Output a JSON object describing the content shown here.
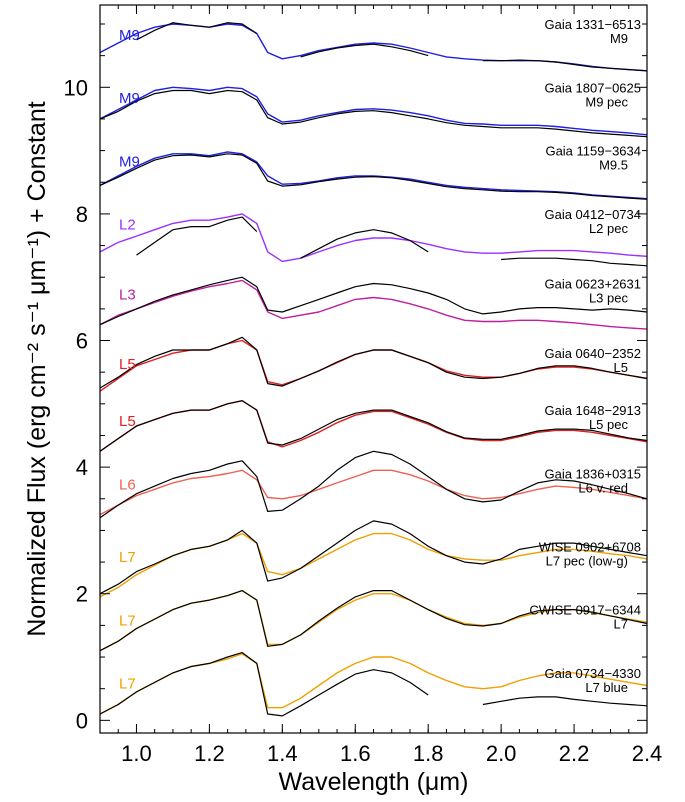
{
  "chart_data": {
    "type": "line",
    "xlabel": "Wavelength (μm)",
    "ylabel": "Normalized Flux (erg cm⁻² s⁻¹ μm⁻¹) + Constant",
    "xlim": [
      0.9,
      2.4
    ],
    "ylim": [
      -0.2,
      11.3
    ],
    "xticks": [
      1.0,
      1.2,
      1.4,
      1.6,
      1.8,
      2.0,
      2.2,
      2.4
    ],
    "xtick_labels": [
      "1.0",
      "1.2",
      "1.4",
      "1.6",
      "1.8",
      "2.0",
      "2.2",
      "2.4"
    ],
    "yticks": [
      0,
      2,
      4,
      6,
      8,
      10
    ],
    "ytick_labels": [
      "0",
      "2",
      "4",
      "6",
      "8",
      "10"
    ],
    "grid": false,
    "legend": "none",
    "template_x": [
      0.9,
      0.95,
      1.0,
      1.05,
      1.1,
      1.15,
      1.2,
      1.25,
      1.29,
      1.33,
      1.36,
      1.4,
      1.45,
      1.5,
      1.55,
      1.6,
      1.65,
      1.7,
      1.75,
      1.8,
      1.85,
      1.9,
      1.95,
      2.0,
      2.05,
      2.1,
      2.15,
      2.2,
      2.25,
      2.3,
      2.35,
      2.4
    ],
    "series": [
      {
        "object": "Gaia 1331−6513",
        "spt": "M9",
        "standard": "M9",
        "offset": 10.0,
        "standard_color": "#1f1fe0",
        "standard_values": [
          0.55,
          0.7,
          0.85,
          0.95,
          1.0,
          0.98,
          0.95,
          1.0,
          0.98,
          0.85,
          0.55,
          0.45,
          0.5,
          0.58,
          0.63,
          0.68,
          0.7,
          0.68,
          0.62,
          0.55,
          0.48,
          0.45,
          0.43,
          0.42,
          0.42,
          0.42,
          0.4,
          0.37,
          0.33,
          0.3,
          0.28,
          0.26
        ],
        "object_values": [
          null,
          null,
          0.75,
          0.9,
          1.02,
          0.98,
          0.95,
          1.02,
          1.0,
          0.85,
          null,
          null,
          0.48,
          0.56,
          0.62,
          0.66,
          0.68,
          0.64,
          0.58,
          0.5,
          null,
          null,
          0.42,
          0.42,
          0.43,
          0.42,
          0.4,
          0.36,
          0.32,
          0.3,
          0.28,
          0.26
        ]
      },
      {
        "object": "Gaia 1807−0625",
        "spt": "M9 pec",
        "standard": "M9",
        "offset": 9.0,
        "standard_color": "#1f1fe0",
        "standard_values": [
          0.5,
          0.65,
          0.8,
          0.95,
          1.0,
          0.98,
          0.95,
          1.0,
          0.98,
          0.85,
          0.58,
          0.45,
          0.48,
          0.55,
          0.6,
          0.65,
          0.66,
          0.64,
          0.6,
          0.55,
          0.48,
          0.43,
          0.42,
          0.4,
          0.4,
          0.4,
          0.38,
          0.35,
          0.32,
          0.3,
          0.28,
          0.25
        ],
        "object_values": [
          0.5,
          0.62,
          0.78,
          0.9,
          0.95,
          0.95,
          0.9,
          0.95,
          0.93,
          0.8,
          0.52,
          0.42,
          0.45,
          0.52,
          0.58,
          0.62,
          0.63,
          0.6,
          0.55,
          0.5,
          0.44,
          0.4,
          0.38,
          0.36,
          0.36,
          0.36,
          0.34,
          0.31,
          0.28,
          0.26,
          0.24,
          0.22
        ]
      },
      {
        "object": "Gaia 1159−3634",
        "spt": "M9.5",
        "standard": "M9",
        "offset": 8.0,
        "standard_color": "#1f1fe0",
        "standard_values": [
          0.45,
          0.6,
          0.75,
          0.88,
          0.95,
          0.95,
          0.92,
          0.98,
          0.95,
          0.82,
          0.6,
          0.47,
          0.48,
          0.52,
          0.57,
          0.6,
          0.6,
          0.58,
          0.55,
          0.5,
          0.45,
          0.42,
          0.4,
          0.38,
          0.37,
          0.36,
          0.35,
          0.33,
          0.3,
          0.28,
          0.26,
          0.24
        ],
        "object_values": [
          0.45,
          0.58,
          0.72,
          0.85,
          0.92,
          0.93,
          0.9,
          0.95,
          0.93,
          0.8,
          0.52,
          0.44,
          0.46,
          0.51,
          0.55,
          0.58,
          0.59,
          0.57,
          0.53,
          0.48,
          0.43,
          0.4,
          0.38,
          0.36,
          0.35,
          0.35,
          0.34,
          0.32,
          0.29,
          0.27,
          0.25,
          0.23
        ]
      },
      {
        "object": "Gaia 0412−0734",
        "spt": "L2 pec",
        "standard": "L2",
        "offset": 7.0,
        "standard_color": "#9b30ff",
        "standard_values": [
          0.4,
          0.55,
          0.65,
          0.75,
          0.85,
          0.9,
          0.9,
          0.95,
          1.0,
          0.85,
          0.4,
          0.25,
          0.3,
          0.4,
          0.5,
          0.58,
          0.62,
          0.62,
          0.58,
          0.52,
          0.45,
          0.4,
          0.38,
          0.38,
          0.4,
          0.42,
          0.42,
          0.42,
          0.4,
          0.38,
          0.35,
          0.33
        ],
        "object_values": [
          null,
          null,
          0.35,
          0.55,
          0.75,
          0.8,
          0.8,
          0.9,
          0.95,
          0.72,
          null,
          null,
          0.3,
          0.45,
          0.6,
          0.7,
          0.75,
          0.7,
          0.58,
          0.4,
          null,
          null,
          null,
          0.28,
          0.3,
          0.3,
          0.3,
          0.28,
          0.26,
          0.22,
          0.2,
          0.18
        ]
      },
      {
        "object": "Gaia 0623+2631",
        "spt": "L3 pec",
        "standard": "L3",
        "offset": 5.9,
        "standard_color": "#c01fa0",
        "standard_values": [
          0.35,
          0.5,
          0.6,
          0.7,
          0.8,
          0.88,
          0.95,
          1.0,
          1.05,
          0.9,
          0.55,
          0.45,
          0.5,
          0.55,
          0.65,
          0.75,
          0.78,
          0.75,
          0.68,
          0.6,
          0.5,
          0.42,
          0.4,
          0.4,
          0.42,
          0.42,
          0.4,
          0.38,
          0.35,
          0.32,
          0.3,
          0.28
        ],
        "object_values": [
          0.35,
          0.48,
          0.6,
          0.72,
          0.82,
          0.9,
          0.98,
          1.05,
          1.1,
          0.95,
          0.58,
          0.55,
          0.65,
          0.75,
          0.85,
          0.95,
          1.0,
          0.98,
          0.92,
          0.85,
          0.75,
          0.6,
          0.52,
          0.55,
          0.6,
          0.62,
          0.62,
          0.6,
          0.58,
          0.6,
          0.58,
          0.55
        ]
      },
      {
        "object": "Gaia 0640−2352",
        "spt": "L5",
        "standard": "L5",
        "offset": 4.8,
        "standard_color": "#e02020",
        "standard_values": [
          0.4,
          0.6,
          0.8,
          0.9,
          1.0,
          1.05,
          1.05,
          1.15,
          1.2,
          1.05,
          0.55,
          0.5,
          0.6,
          0.72,
          0.85,
          0.98,
          1.05,
          1.05,
          0.95,
          0.85,
          0.72,
          0.65,
          0.62,
          0.62,
          0.68,
          0.75,
          0.78,
          0.78,
          0.75,
          0.7,
          0.65,
          0.6
        ],
        "object_values": [
          0.45,
          0.62,
          0.82,
          0.95,
          1.05,
          1.05,
          1.05,
          1.15,
          1.25,
          1.05,
          0.52,
          0.48,
          0.6,
          0.72,
          0.86,
          0.98,
          1.05,
          1.05,
          0.95,
          0.85,
          0.7,
          0.62,
          0.6,
          0.62,
          0.68,
          0.76,
          0.8,
          0.8,
          0.76,
          0.7,
          0.65,
          0.6
        ]
      },
      {
        "object": "Gaia 1648−2913",
        "spt": "L5 pec",
        "standard": "L5",
        "offset": 3.9,
        "standard_color": "#e02020",
        "standard_values": [
          0.35,
          0.55,
          0.75,
          0.85,
          0.95,
          1.0,
          1.0,
          1.1,
          1.15,
          1.0,
          0.5,
          0.42,
          0.52,
          0.65,
          0.8,
          0.92,
          0.98,
          0.98,
          0.88,
          0.78,
          0.65,
          0.55,
          0.52,
          0.52,
          0.58,
          0.65,
          0.68,
          0.68,
          0.65,
          0.6,
          0.55,
          0.5
        ],
        "object_values": [
          0.35,
          0.55,
          0.75,
          0.85,
          0.95,
          1.0,
          1.0,
          1.1,
          1.15,
          1.0,
          0.48,
          0.45,
          0.55,
          0.7,
          0.85,
          0.95,
          1.0,
          1.0,
          0.9,
          0.8,
          0.66,
          0.56,
          0.54,
          0.54,
          0.6,
          0.67,
          0.7,
          0.7,
          0.68,
          0.62,
          0.56,
          0.52
        ]
      },
      {
        "object": "Gaia 1836+0315",
        "spt": "L6 v. red",
        "standard": "L6",
        "offset": 2.9,
        "standard_color": "#f06050",
        "standard_values": [
          0.35,
          0.5,
          0.65,
          0.75,
          0.85,
          0.92,
          0.95,
          1.0,
          1.05,
          0.9,
          0.62,
          0.6,
          0.65,
          0.75,
          0.85,
          0.95,
          1.05,
          1.05,
          0.98,
          0.88,
          0.75,
          0.65,
          0.6,
          0.62,
          0.68,
          0.75,
          0.8,
          0.78,
          0.75,
          0.7,
          0.65,
          0.6
        ],
        "object_values": [
          0.3,
          0.5,
          0.68,
          0.8,
          0.92,
          1.0,
          1.05,
          1.15,
          1.2,
          0.95,
          0.4,
          0.42,
          0.6,
          0.8,
          1.05,
          1.25,
          1.35,
          1.3,
          1.15,
          0.95,
          0.75,
          0.6,
          0.55,
          0.58,
          0.72,
          0.85,
          0.9,
          0.88,
          0.82,
          0.75,
          0.68,
          0.6
        ]
      },
      {
        "object": "WISE 0902+6708",
        "spt": "L7 pec (low-g)",
        "standard": "L7",
        "offset": 1.75,
        "standard_color": "#f0a000",
        "standard_values": [
          0.2,
          0.35,
          0.55,
          0.7,
          0.85,
          0.95,
          1.0,
          1.1,
          1.2,
          1.05,
          0.6,
          0.55,
          0.65,
          0.8,
          0.95,
          1.1,
          1.2,
          1.2,
          1.1,
          0.95,
          0.85,
          0.8,
          0.78,
          0.78,
          0.85,
          0.9,
          0.95,
          0.95,
          0.92,
          0.88,
          0.85,
          0.8
        ],
        "object_values": [
          0.25,
          0.4,
          0.6,
          0.72,
          0.85,
          0.95,
          1.0,
          1.1,
          1.25,
          1.05,
          0.45,
          0.5,
          0.65,
          0.85,
          1.05,
          1.25,
          1.4,
          1.35,
          1.2,
          1.0,
          0.85,
          0.75,
          0.72,
          0.8,
          0.95,
          1.0,
          1.05,
          1.05,
          1.0,
          0.95,
          0.9,
          0.85
        ]
      },
      {
        "object": "CWISE 0917−6344",
        "spt": "L7",
        "standard": "L7",
        "offset": 0.75,
        "standard_color": "#f0a000",
        "standard_values": [
          0.35,
          0.5,
          0.7,
          0.85,
          1.0,
          1.1,
          1.15,
          1.22,
          1.3,
          1.15,
          0.45,
          0.45,
          0.6,
          0.8,
          1.0,
          1.15,
          1.25,
          1.25,
          1.15,
          1.0,
          0.88,
          0.78,
          0.75,
          0.78,
          0.88,
          0.95,
          1.0,
          1.0,
          0.95,
          0.9,
          0.85,
          0.8
        ],
        "object_values": [
          0.35,
          0.5,
          0.7,
          0.85,
          1.0,
          1.1,
          1.15,
          1.22,
          1.3,
          1.15,
          0.42,
          0.45,
          0.6,
          0.82,
          1.02,
          1.2,
          1.3,
          1.3,
          1.15,
          1.0,
          0.86,
          0.76,
          0.74,
          0.78,
          0.9,
          0.98,
          1.0,
          1.0,
          0.96,
          0.9,
          0.84,
          0.78
        ]
      },
      {
        "object": "Gaia 0734−4330",
        "spt": "L7 blue",
        "standard": "L7",
        "offset": -0.25,
        "standard_color": "#f0a000",
        "standard_values": [
          0.35,
          0.5,
          0.7,
          0.85,
          1.0,
          1.1,
          1.15,
          1.22,
          1.3,
          1.15,
          0.45,
          0.45,
          0.6,
          0.8,
          1.0,
          1.15,
          1.25,
          1.25,
          1.15,
          1.0,
          0.88,
          0.78,
          0.75,
          0.78,
          0.88,
          0.95,
          1.0,
          1.0,
          0.95,
          0.9,
          0.85,
          0.8
        ],
        "object_values": [
          0.35,
          0.5,
          0.7,
          0.85,
          1.0,
          1.1,
          1.15,
          1.25,
          1.32,
          1.15,
          0.35,
          0.32,
          0.48,
          0.65,
          0.82,
          0.98,
          1.05,
          1.0,
          0.85,
          0.65,
          null,
          null,
          0.5,
          0.55,
          0.6,
          0.62,
          0.62,
          0.58,
          0.55,
          0.52,
          0.5,
          0.48
        ]
      }
    ]
  }
}
